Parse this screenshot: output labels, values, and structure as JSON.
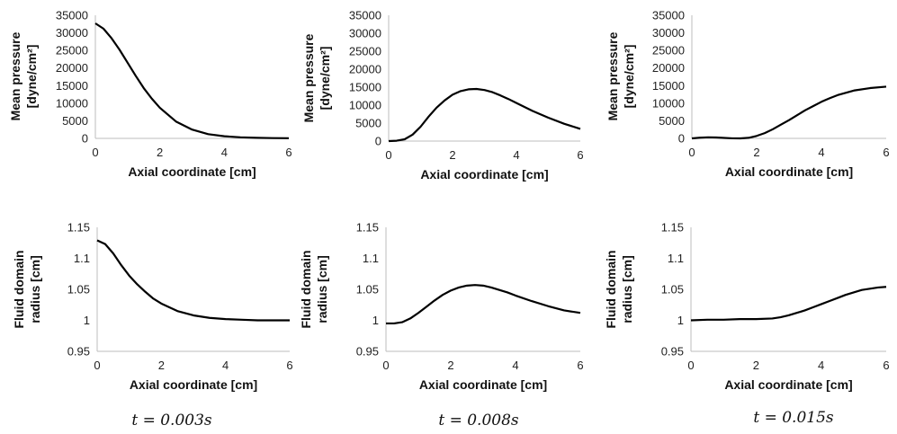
{
  "chart_data": [
    {
      "type": "line",
      "row": "pressure",
      "column": 0,
      "ylabel": [
        "Mean pressure",
        "[dyne/cm²]"
      ],
      "xlabel": "Axial coordinate [cm]",
      "xlim": [
        0,
        6
      ],
      "ylim": [
        0,
        35000
      ],
      "xticks": [
        "0",
        "2",
        "4",
        "6"
      ],
      "yticks": [
        "0",
        "5000",
        "10000",
        "15000",
        "20000",
        "25000",
        "30000",
        "35000"
      ],
      "x": [
        0,
        0.25,
        0.5,
        0.75,
        1,
        1.25,
        1.5,
        1.75,
        2,
        2.5,
        3,
        3.5,
        4,
        4.5,
        5,
        5.5,
        6
      ],
      "y": [
        32700,
        31200,
        28500,
        25200,
        21500,
        17800,
        14300,
        11300,
        8700,
        4800,
        2500,
        1200,
        600,
        300,
        150,
        80,
        50
      ]
    },
    {
      "type": "line",
      "row": "pressure",
      "column": 1,
      "ylabel": [
        "Mean pressure",
        "[dyne/cm²]"
      ],
      "xlabel": "Axial coordinate [cm]",
      "xlim": [
        0,
        6
      ],
      "ylim": [
        0,
        35000
      ],
      "xticks": [
        "0",
        "2",
        "4",
        "6"
      ],
      "yticks": [
        "0",
        "5000",
        "10000",
        "15000",
        "20000",
        "25000",
        "30000",
        "35000"
      ],
      "x": [
        0,
        0.25,
        0.5,
        0.75,
        1,
        1.25,
        1.5,
        1.75,
        2,
        2.25,
        2.5,
        2.75,
        3,
        3.25,
        3.5,
        3.75,
        4,
        4.5,
        5,
        5.5,
        6
      ],
      "y": [
        0,
        100,
        500,
        1800,
        4000,
        6800,
        9300,
        11300,
        12900,
        13900,
        14400,
        14500,
        14200,
        13600,
        12700,
        11700,
        10600,
        8400,
        6500,
        4800,
        3400
      ]
    },
    {
      "type": "line",
      "row": "pressure",
      "column": 2,
      "ylabel": [
        "Mean pressure",
        "[dyne/cm²]"
      ],
      "xlabel": "Axial coordinate [cm]",
      "xlim": [
        0,
        6
      ],
      "ylim": [
        0,
        35000
      ],
      "xticks": [
        "0",
        "2",
        "4",
        "6"
      ],
      "yticks": [
        "0",
        "5000",
        "10000",
        "15000",
        "20000",
        "25000",
        "30000",
        "35000"
      ],
      "x": [
        0,
        0.25,
        0.5,
        0.75,
        1,
        1.25,
        1.5,
        1.75,
        2,
        2.25,
        2.5,
        2.75,
        3,
        3.25,
        3.5,
        3.75,
        4,
        4.25,
        4.5,
        5,
        5.5,
        6
      ],
      "y": [
        0,
        200,
        300,
        250,
        120,
        20,
        0,
        150,
        700,
        1500,
        2600,
        3900,
        5200,
        6600,
        8000,
        9200,
        10400,
        11400,
        12300,
        13600,
        14300,
        14700
      ]
    },
    {
      "type": "line",
      "row": "radius",
      "column": 0,
      "ylabel": [
        "Fluid domain",
        "radius [cm]"
      ],
      "xlabel": "Axial coordinate [cm]",
      "xlim": [
        0,
        6
      ],
      "ylim": [
        0.95,
        1.15
      ],
      "xticks": [
        "0",
        "2",
        "4",
        "6"
      ],
      "yticks": [
        "0.95",
        "1",
        "1.05",
        "1.1",
        "1.15"
      ],
      "x": [
        0,
        0.25,
        0.5,
        0.75,
        1,
        1.25,
        1.5,
        1.75,
        2,
        2.5,
        3,
        3.5,
        4,
        4.5,
        5,
        5.5,
        6
      ],
      "y": [
        1.129,
        1.123,
        1.108,
        1.089,
        1.072,
        1.058,
        1.046,
        1.035,
        1.027,
        1.015,
        1.008,
        1.004,
        1.002,
        1.001,
        1.0,
        1.0,
        1.0
      ]
    },
    {
      "type": "line",
      "row": "radius",
      "column": 1,
      "ylabel": [
        "Fluid domain",
        "radius [cm]"
      ],
      "xlabel": "Axial coordinate [cm]",
      "xlim": [
        0,
        6
      ],
      "ylim": [
        0.95,
        1.15
      ],
      "xticks": [
        "0",
        "2",
        "4",
        "6"
      ],
      "yticks": [
        "0.95",
        "1",
        "1.05",
        "1.1",
        "1.15"
      ],
      "x": [
        0,
        0.25,
        0.5,
        0.75,
        1,
        1.25,
        1.5,
        1.75,
        2,
        2.25,
        2.5,
        2.75,
        3,
        3.25,
        3.5,
        3.75,
        4,
        4.5,
        5,
        5.5,
        6
      ],
      "y": [
        0.995,
        0.995,
        0.997,
        1.003,
        1.012,
        1.022,
        1.032,
        1.041,
        1.048,
        1.053,
        1.056,
        1.057,
        1.056,
        1.053,
        1.049,
        1.045,
        1.04,
        1.031,
        1.023,
        1.016,
        1.012
      ]
    },
    {
      "type": "line",
      "row": "radius",
      "column": 2,
      "ylabel": [
        "Fluid domain",
        "radius [cm]"
      ],
      "xlabel": "Axial coordinate [cm]",
      "xlim": [
        0,
        6
      ],
      "ylim": [
        0.95,
        1.15
      ],
      "xticks": [
        "0",
        "2",
        "4",
        "6"
      ],
      "yticks": [
        "0.95",
        "1",
        "1.05",
        "1.1",
        "1.15"
      ],
      "x": [
        0,
        0.5,
        1,
        1.5,
        2,
        2.5,
        2.75,
        3,
        3.25,
        3.5,
        3.75,
        4,
        4.25,
        4.5,
        4.75,
        5,
        5.25,
        5.5,
        5.75,
        6
      ],
      "y": [
        1.0,
        1.001,
        1.001,
        1.002,
        1.002,
        1.003,
        1.005,
        1.008,
        1.012,
        1.016,
        1.021,
        1.026,
        1.031,
        1.036,
        1.041,
        1.045,
        1.049,
        1.051,
        1.053,
        1.054
      ]
    }
  ],
  "captions": [
    "t = 0.003s",
    "t = 0.008s",
    "t = 0.015s"
  ]
}
